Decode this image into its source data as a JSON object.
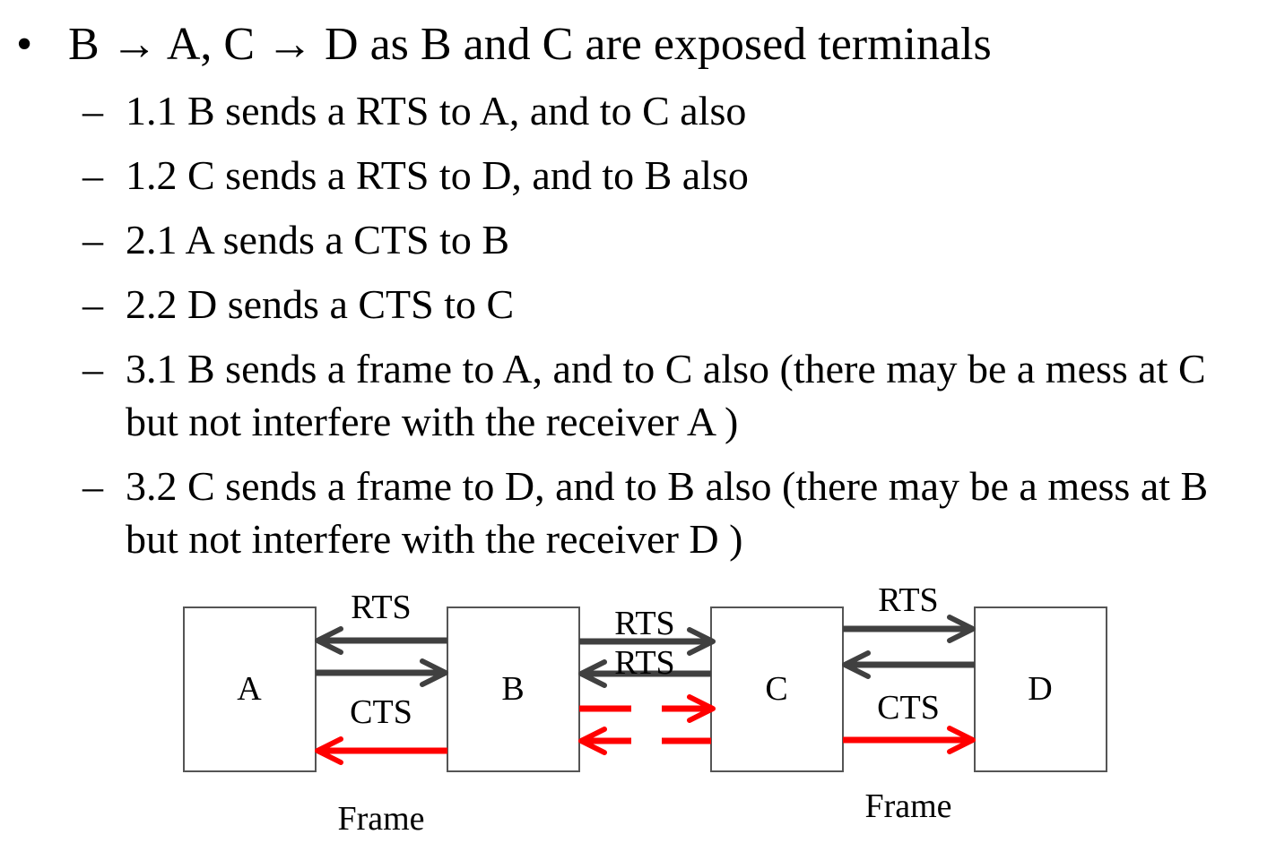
{
  "slide": {
    "main_bullet": {
      "symbol": "•",
      "text": "B → A, C → D as B and C are exposed terminals"
    },
    "sub_items": [
      {
        "dash": "–",
        "text": "1.1 B sends a RTS to A, and to C also"
      },
      {
        "dash": "–",
        "text": "1.2 C sends a RTS to D, and to B also"
      },
      {
        "dash": "–",
        "text": "2.1 A sends a CTS to B"
      },
      {
        "dash": "–",
        "text": "2.2 D sends a CTS to C"
      },
      {
        "dash": "–",
        "text": "3.1 B sends a frame to A, and to C also (there may be a mess at C but not interfere with the receiver A )"
      },
      {
        "dash": "–",
        "text": "3.2 C sends a frame to D, and to B also (there may be a mess at B but not interfere with the receiver D )"
      }
    ]
  },
  "diagram": {
    "nodes": [
      "A",
      "B",
      "C",
      "D"
    ],
    "labels": {
      "rts_ab": "RTS",
      "cts_ab": "CTS",
      "frame_ab": "Frame",
      "rts_bc_top": "RTS",
      "rts_bc_bottom": "RTS",
      "rts_cd": "RTS",
      "cts_cd": "CTS",
      "frame_cd": "Frame"
    },
    "colors": {
      "control_arrow": "#404040",
      "frame_arrow": "#ff0000",
      "box_border": "#555555"
    }
  }
}
